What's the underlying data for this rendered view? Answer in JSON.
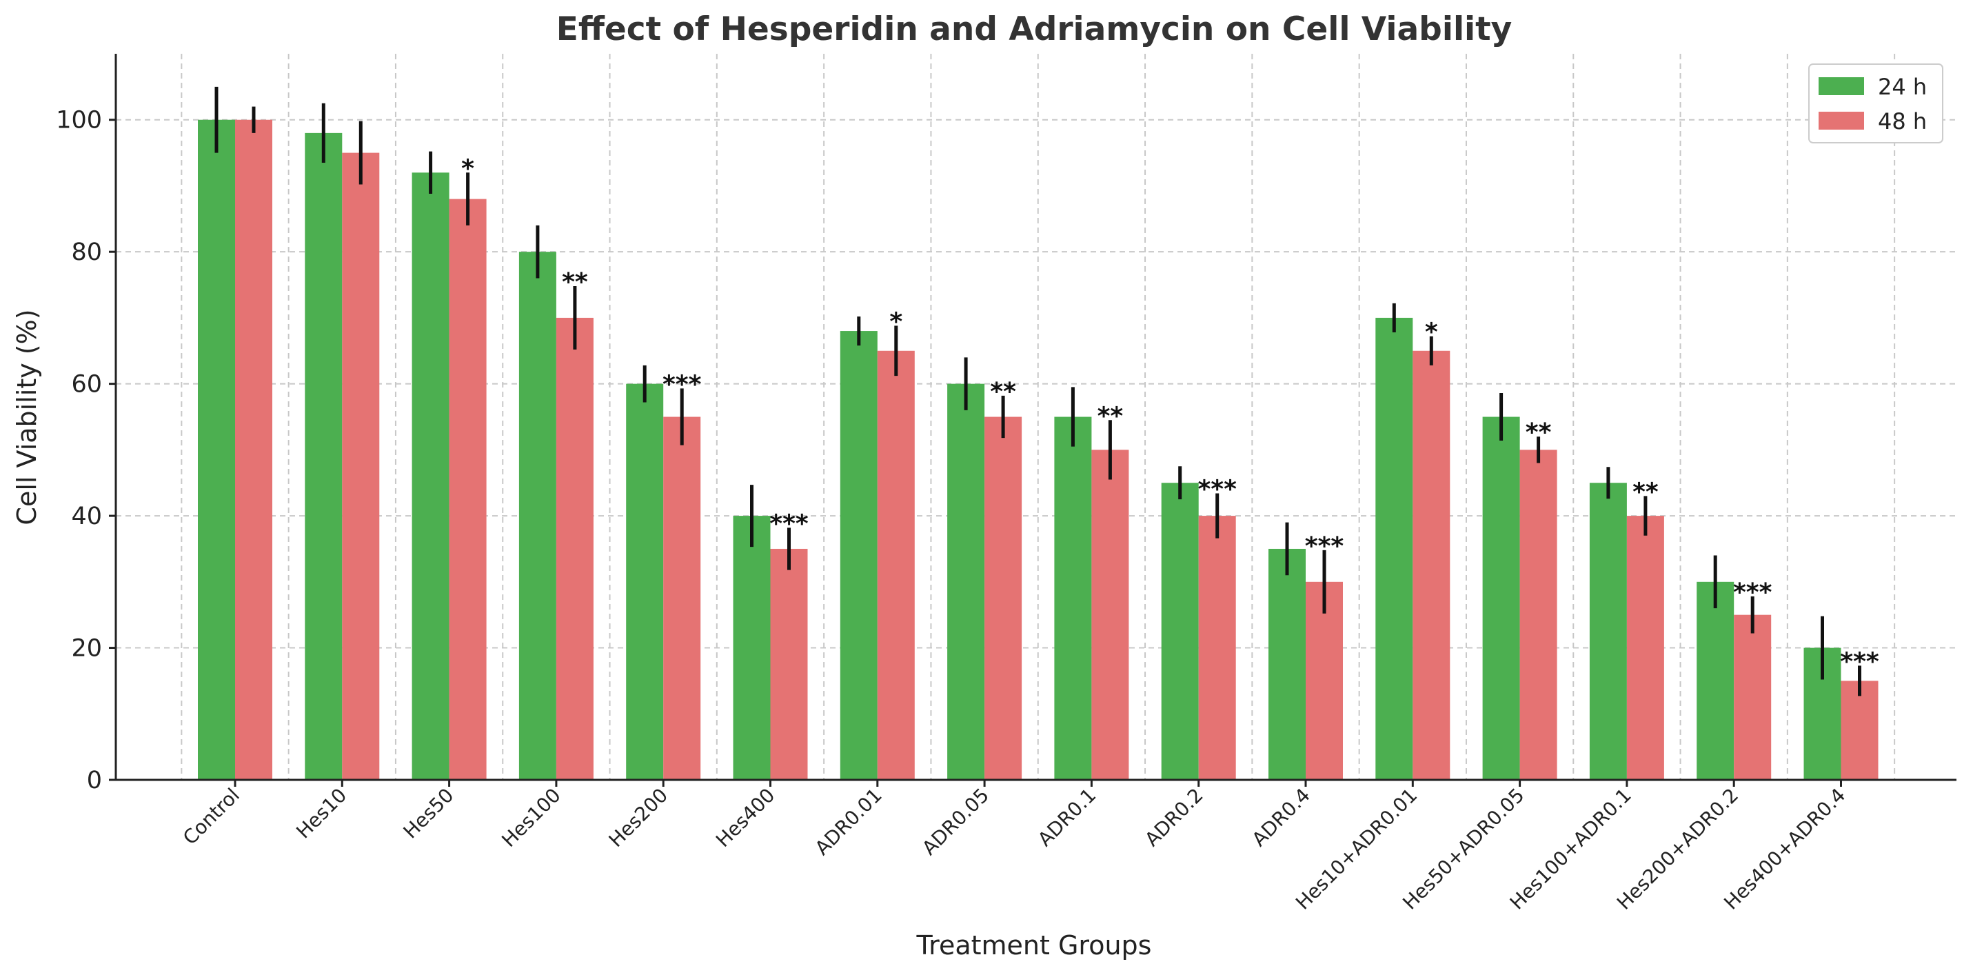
{
  "chart_data": {
    "type": "bar",
    "title": "Effect of Hesperidin and Adriamycin on Cell Viability",
    "xlabel": "Treatment Groups",
    "ylabel": "Cell Viability (%)",
    "ylim": [
      0,
      110
    ],
    "yticks": [
      0,
      20,
      40,
      60,
      80,
      100
    ],
    "grid": true,
    "legend_position": "top-right",
    "categories": [
      "Control",
      "Hes10",
      "Hes50",
      "Hes100",
      "Hes200",
      "Hes400",
      "ADR0.01",
      "ADR0.05",
      "ADR0.1",
      "ADR0.2",
      "ADR0.4",
      "Hes10+ADR0.01",
      "Hes50+ADR0.05",
      "Hes100+ADR0.1",
      "Hes200+ADR0.2",
      "Hes400+ADR0.4"
    ],
    "series": [
      {
        "name": "24 h",
        "color": "#4CAF50",
        "values": [
          100,
          98,
          92,
          80,
          60,
          40,
          68,
          60,
          55,
          45,
          35,
          70,
          55,
          45,
          30,
          20
        ],
        "errors": [
          5,
          4.5,
          3.2,
          4,
          2.8,
          4.7,
          2.2,
          4,
          4.5,
          2.5,
          4,
          2.2,
          3.6,
          2.4,
          4,
          4.8
        ]
      },
      {
        "name": "48 h",
        "color": "#E57373",
        "values": [
          100,
          95,
          88,
          70,
          55,
          35,
          65,
          55,
          50,
          40,
          30,
          65,
          50,
          40,
          25,
          15
        ],
        "errors": [
          2,
          4.8,
          4,
          4.8,
          4.3,
          3.2,
          3.8,
          3.2,
          4.5,
          3.4,
          4.8,
          2.2,
          2,
          3,
          2.8,
          2.3
        ],
        "significance": [
          "",
          "",
          "*",
          "**",
          "***",
          "***",
          "*",
          "**",
          "**",
          "***",
          "***",
          "*",
          "**",
          "**",
          "***",
          "***"
        ]
      }
    ]
  }
}
